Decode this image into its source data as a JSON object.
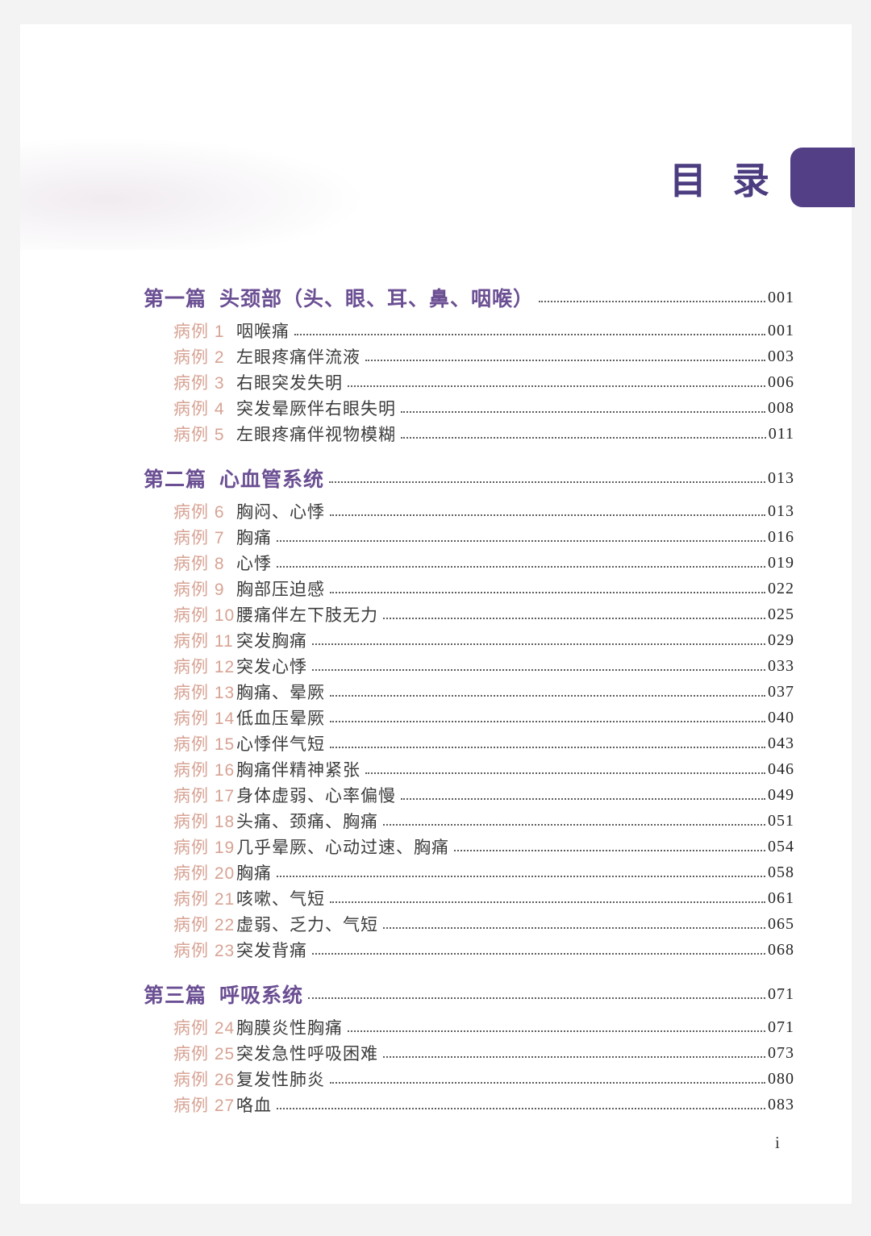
{
  "page": {
    "title": "目录",
    "footer_page_number": "i"
  },
  "colors": {
    "title_purple": "#4C3C80",
    "tab_purple": "#523F85",
    "heading_purple": "#6B4F93",
    "case_label_salmon": "#D7A394"
  },
  "toc": {
    "sections": [
      {
        "label": "第一篇",
        "title": "头颈部（头、眼、耳、鼻、咽喉）",
        "page": "001",
        "cases": [
          {
            "label": "病例 1",
            "title": "咽喉痛",
            "page": "001"
          },
          {
            "label": "病例 2",
            "title": "左眼疼痛伴流液",
            "page": "003"
          },
          {
            "label": "病例 3",
            "title": "右眼突发失明",
            "page": "006"
          },
          {
            "label": "病例 4",
            "title": "突发晕厥伴右眼失明",
            "page": "008"
          },
          {
            "label": "病例 5",
            "title": "左眼疼痛伴视物模糊",
            "page": "011"
          }
        ]
      },
      {
        "label": "第二篇",
        "title": "心血管系统",
        "page": "013",
        "cases": [
          {
            "label": "病例 6",
            "title": "胸闷、心悸",
            "page": "013"
          },
          {
            "label": "病例 7",
            "title": "胸痛",
            "page": "016"
          },
          {
            "label": "病例 8",
            "title": "心悸",
            "page": "019"
          },
          {
            "label": "病例 9",
            "title": "胸部压迫感",
            "page": "022"
          },
          {
            "label": "病例 10",
            "title": "腰痛伴左下肢无力",
            "page": "025"
          },
          {
            "label": "病例 11",
            "title": "突发胸痛",
            "page": "029"
          },
          {
            "label": "病例 12",
            "title": "突发心悸",
            "page": "033"
          },
          {
            "label": "病例 13",
            "title": "胸痛、晕厥",
            "page": "037"
          },
          {
            "label": "病例 14",
            "title": "低血压晕厥",
            "page": "040"
          },
          {
            "label": "病例 15",
            "title": "心悸伴气短",
            "page": "043"
          },
          {
            "label": "病例 16",
            "title": "胸痛伴精神紧张",
            "page": "046"
          },
          {
            "label": "病例 17",
            "title": "身体虚弱、心率偏慢",
            "page": "049"
          },
          {
            "label": "病例 18",
            "title": "头痛、颈痛、胸痛",
            "page": "051"
          },
          {
            "label": "病例 19",
            "title": "几乎晕厥、心动过速、胸痛",
            "page": "054"
          },
          {
            "label": "病例 20",
            "title": "胸痛",
            "page": "058"
          },
          {
            "label": "病例 21",
            "title": "咳嗽、气短",
            "page": "061"
          },
          {
            "label": "病例 22",
            "title": "虚弱、乏力、气短",
            "page": "065"
          },
          {
            "label": "病例 23",
            "title": "突发背痛",
            "page": "068"
          }
        ]
      },
      {
        "label": "第三篇",
        "title": "呼吸系统",
        "page": "071",
        "cases": [
          {
            "label": "病例 24",
            "title": "胸膜炎性胸痛",
            "page": "071"
          },
          {
            "label": "病例 25",
            "title": "突发急性呼吸困难",
            "page": "073"
          },
          {
            "label": "病例 26",
            "title": "复发性肺炎",
            "page": "080"
          },
          {
            "label": "病例 27",
            "title": "咯血",
            "page": "083"
          }
        ]
      }
    ]
  }
}
